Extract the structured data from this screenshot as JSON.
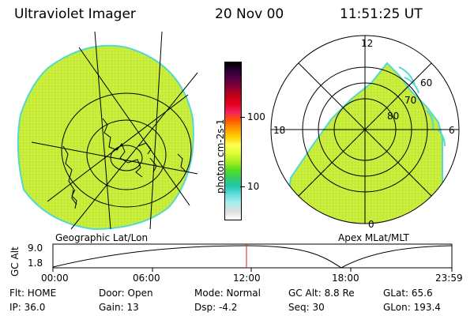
{
  "header": {
    "title": "Ultraviolet Imager",
    "date": "20 Nov 00",
    "time": "11:51:25 UT"
  },
  "geo_panel": {
    "caption": "Geographic Lat/Lon",
    "fill_color": "#c8ec3a",
    "edge_color": "#55d8d0"
  },
  "colorbar": {
    "label": "photon cm-2s-1",
    "ticks": [
      "100",
      "10"
    ],
    "colors": [
      "#000000",
      "#2a0033",
      "#560044",
      "#8a0030",
      "#c0001a",
      "#e4001a",
      "#f02060",
      "#ff5500",
      "#ff9900",
      "#ffd000",
      "#ffff55",
      "#ddff33",
      "#aaee22",
      "#55dd22",
      "#33cc66",
      "#22c8b0",
      "#66dddd",
      "#aaeeee",
      "#dddddd",
      "#ffffff"
    ]
  },
  "polar_panel": {
    "caption": "Apex MLat/MLT",
    "mlt_labels": {
      "top": "12",
      "left": "18",
      "right": "6",
      "bottom": "0"
    },
    "lat_labels": [
      "60",
      "70",
      "80"
    ]
  },
  "orbit_plot": {
    "ylabel": "GC Alt",
    "yticks": [
      "9.0",
      "1.8"
    ],
    "xticks": [
      "00:00",
      "06:00",
      "12:00",
      "18:00",
      "23:59"
    ],
    "marker_color": "#dd2222"
  },
  "status": {
    "flt": "Flt: HOME",
    "door": "Door: Open",
    "mode": "Mode: Normal",
    "gc_alt": "GC Alt: 8.8 Re",
    "glat": "GLat:  65.6",
    "ip": "IP: 36.0",
    "gain": "Gain: 13",
    "dsp": "Dsp:    -4.2",
    "seq": "Seq: 30",
    "glon": "GLon: 193.4"
  }
}
